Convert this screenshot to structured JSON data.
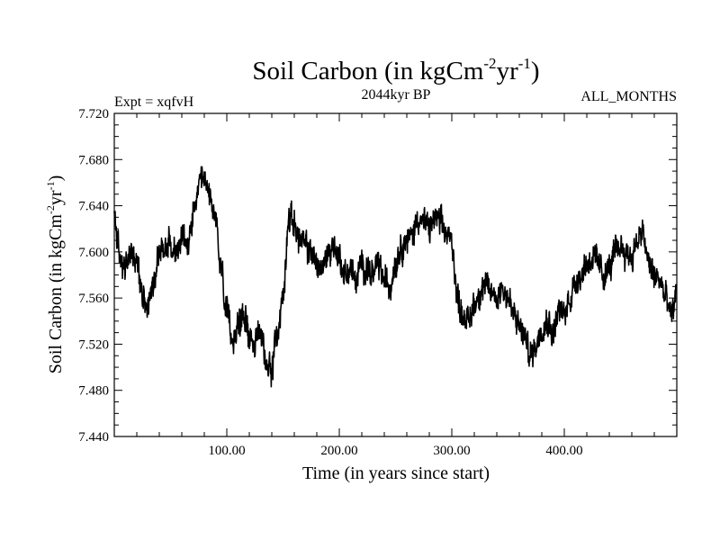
{
  "chart_data": {
    "type": "line",
    "title": "Soil Carbon (in kgCm",
    "title_sup1": "-2",
    "title_mid": "yr",
    "title_sup2": "-1",
    "title_end": ")",
    "subtitle_left": "Expt = xqfvH",
    "subtitle_center": "2044kyr BP",
    "subtitle_right": "ALL_MONTHS",
    "xlabel": "Time (in years since start)",
    "ylabel": "Soil Carbon (in kgCm",
    "ylabel_sup1": "-2",
    "ylabel_mid": "yr",
    "ylabel_sup2": "-1",
    "ylabel_end": ")",
    "xlim": [
      0,
      500
    ],
    "ylim": [
      7.44,
      7.72
    ],
    "x_ticks": [
      100,
      200,
      300,
      400
    ],
    "x_tick_labels": [
      "100.00",
      "200.00",
      "300.00",
      "400.00"
    ],
    "y_ticks": [
      7.44,
      7.48,
      7.52,
      7.56,
      7.6,
      7.64,
      7.68,
      7.72
    ],
    "y_tick_labels": [
      "7.440",
      "7.480",
      "7.520",
      "7.560",
      "7.600",
      "7.640",
      "7.680",
      "7.720"
    ],
    "line_color": "#000000",
    "series": [
      {
        "name": "Soil Carbon",
        "x": [
          0,
          5,
          10,
          15,
          20,
          25,
          30,
          35,
          40,
          45,
          50,
          55,
          60,
          65,
          70,
          75,
          80,
          85,
          90,
          95,
          100,
          105,
          110,
          115,
          120,
          125,
          130,
          135,
          140,
          145,
          150,
          155,
          160,
          165,
          170,
          175,
          180,
          185,
          190,
          195,
          200,
          205,
          210,
          215,
          220,
          225,
          230,
          235,
          240,
          245,
          250,
          255,
          260,
          265,
          270,
          275,
          280,
          285,
          290,
          295,
          300,
          305,
          310,
          315,
          320,
          325,
          330,
          335,
          340,
          345,
          350,
          355,
          360,
          365,
          370,
          375,
          380,
          385,
          390,
          395,
          400,
          405,
          410,
          415,
          420,
          425,
          430,
          435,
          440,
          445,
          450,
          455,
          460,
          465,
          470,
          475,
          480,
          485,
          490,
          495,
          500
        ],
        "values": [
          7.63,
          7.595,
          7.585,
          7.6,
          7.59,
          7.565,
          7.555,
          7.575,
          7.6,
          7.605,
          7.61,
          7.598,
          7.612,
          7.605,
          7.63,
          7.655,
          7.66,
          7.65,
          7.625,
          7.585,
          7.545,
          7.525,
          7.535,
          7.545,
          7.53,
          7.52,
          7.53,
          7.505,
          7.5,
          7.53,
          7.56,
          7.63,
          7.625,
          7.61,
          7.605,
          7.6,
          7.59,
          7.585,
          7.6,
          7.605,
          7.595,
          7.58,
          7.585,
          7.575,
          7.59,
          7.585,
          7.58,
          7.59,
          7.575,
          7.57,
          7.59,
          7.605,
          7.61,
          7.615,
          7.63,
          7.625,
          7.62,
          7.63,
          7.625,
          7.615,
          7.61,
          7.56,
          7.545,
          7.54,
          7.555,
          7.565,
          7.57,
          7.565,
          7.56,
          7.57,
          7.56,
          7.545,
          7.535,
          7.525,
          7.51,
          7.52,
          7.535,
          7.54,
          7.53,
          7.55,
          7.545,
          7.56,
          7.575,
          7.58,
          7.59,
          7.595,
          7.59,
          7.58,
          7.585,
          7.6,
          7.605,
          7.6,
          7.595,
          7.61,
          7.615,
          7.59,
          7.58,
          7.575,
          7.56,
          7.545,
          7.565
        ]
      }
    ]
  }
}
